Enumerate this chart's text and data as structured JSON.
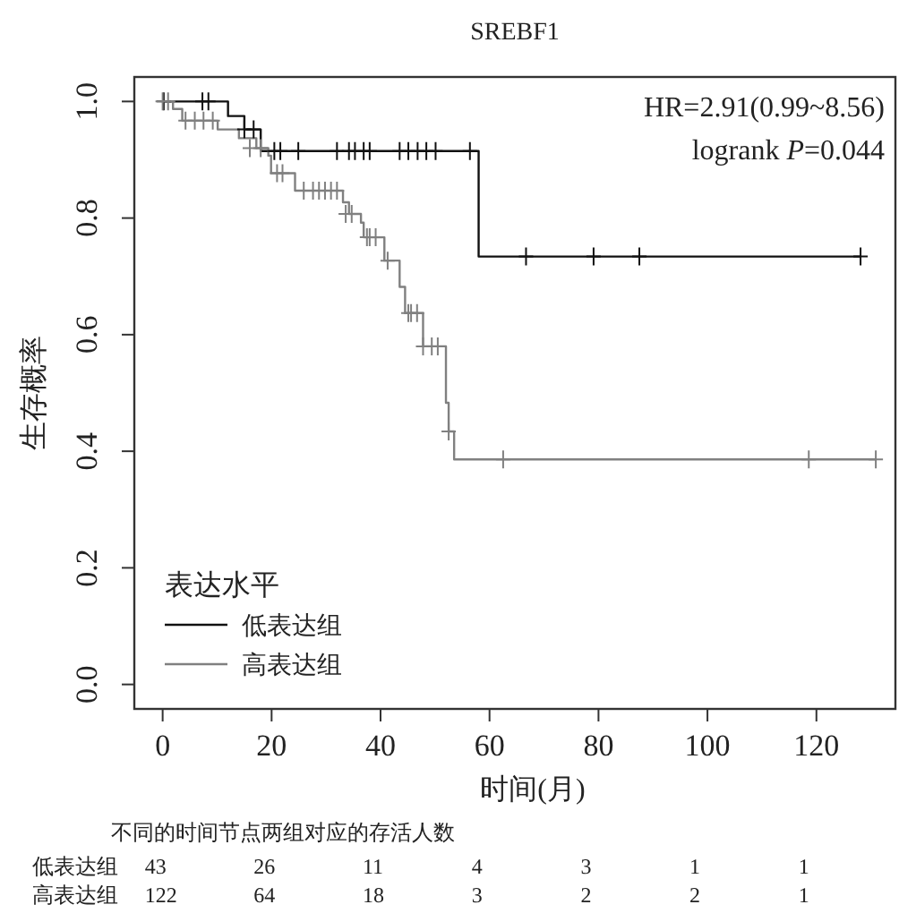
{
  "chart_data": {
    "type": "step",
    "title": "SREBF1",
    "xlabel": "时间(月)",
    "ylabel": "生存概率",
    "legend_title": "表达水平",
    "legend": "bottom left",
    "grid": false,
    "xlim": [
      -5.2,
      134.5
    ],
    "ylim": [
      -0.042,
      1.042
    ],
    "xticks": [
      0,
      20,
      40,
      60,
      80,
      100,
      120
    ],
    "yticks": [
      {
        "value": 0,
        "label": "0.0"
      },
      {
        "value": 0.2,
        "label": "0.2"
      },
      {
        "value": 0.4,
        "label": "0.4"
      },
      {
        "value": 0.6,
        "label": "0.6"
      },
      {
        "value": 0.8,
        "label": "0.8"
      },
      {
        "value": 1,
        "label": "1.0"
      }
    ],
    "series": [
      {
        "name": "低表达组",
        "color": "#111111",
        "x": [
          0,
          12,
          15,
          18,
          58,
          128.1
        ],
        "values": [
          1,
          0.975,
          0.952,
          0.915,
          0.734,
          0.734
        ]
      },
      {
        "name": "高表达组",
        "color": "#808080",
        "x": [
          0,
          1.9,
          3.6,
          10.1,
          14,
          17.2,
          19.4,
          19.9,
          24.3,
          33.1,
          34.2,
          36.4,
          36.9,
          40.7,
          43.5,
          44.5,
          47.8,
          52,
          52.5,
          53.5,
          131
        ],
        "values": [
          1,
          0.987,
          0.967,
          0.952,
          0.937,
          0.92,
          0.907,
          0.877,
          0.847,
          0.827,
          0.807,
          0.792,
          0.767,
          0.727,
          0.682,
          0.637,
          0.58,
          0.483,
          0.434,
          0.386,
          0.386
        ]
      },
      {
        "color": "#111111",
        "type": "scatter",
        "marker": "cross",
        "x": [
          0.2,
          7.3,
          8.4,
          15,
          16.7,
          20.5,
          21.6,
          24.9,
          32,
          34.2,
          35.3,
          36.9,
          38,
          43.5,
          45.1,
          46.8,
          48.4,
          50.1,
          56.4,
          66.7,
          79.1,
          87.5,
          128.1
        ],
        "values": [
          1,
          1,
          1,
          0.952,
          0.952,
          0.915,
          0.915,
          0.915,
          0.915,
          0.915,
          0.915,
          0.915,
          0.915,
          0.915,
          0.915,
          0.915,
          0.915,
          0.915,
          0.915,
          0.734,
          0.734,
          0.734,
          0.734
        ]
      },
      {
        "color": "#808080",
        "type": "scatter",
        "marker": "cross",
        "x": [
          0,
          1,
          4.2,
          5.9,
          7.5,
          9.2,
          16,
          18,
          21,
          22,
          25.9,
          27.6,
          28.7,
          29.8,
          30.9,
          32,
          33.6,
          34.7,
          37.5,
          38,
          39.1,
          41.3,
          45.1,
          45.6,
          46.7,
          47.8,
          49.4,
          50.5,
          52.5,
          62.5,
          118.6,
          130.9
        ],
        "values": [
          1,
          1,
          0.967,
          0.967,
          0.967,
          0.967,
          0.92,
          0.92,
          0.877,
          0.877,
          0.847,
          0.847,
          0.847,
          0.847,
          0.847,
          0.847,
          0.807,
          0.807,
          0.767,
          0.767,
          0.767,
          0.727,
          0.637,
          0.637,
          0.637,
          0.58,
          0.58,
          0.58,
          0.434,
          0.386,
          0.386,
          0.386
        ]
      }
    ],
    "annotations": [
      "HR=2.91(0.99~8.56)",
      "logrank *P*=0.044",
      "不同的时间节点两组对应的存活人数",
      "低表达组",
      "43",
      "26",
      "11",
      "4",
      "3",
      "1",
      "1",
      "高表达组",
      "122",
      "64",
      "18",
      "3",
      "2",
      "2",
      "1"
    ]
  }
}
